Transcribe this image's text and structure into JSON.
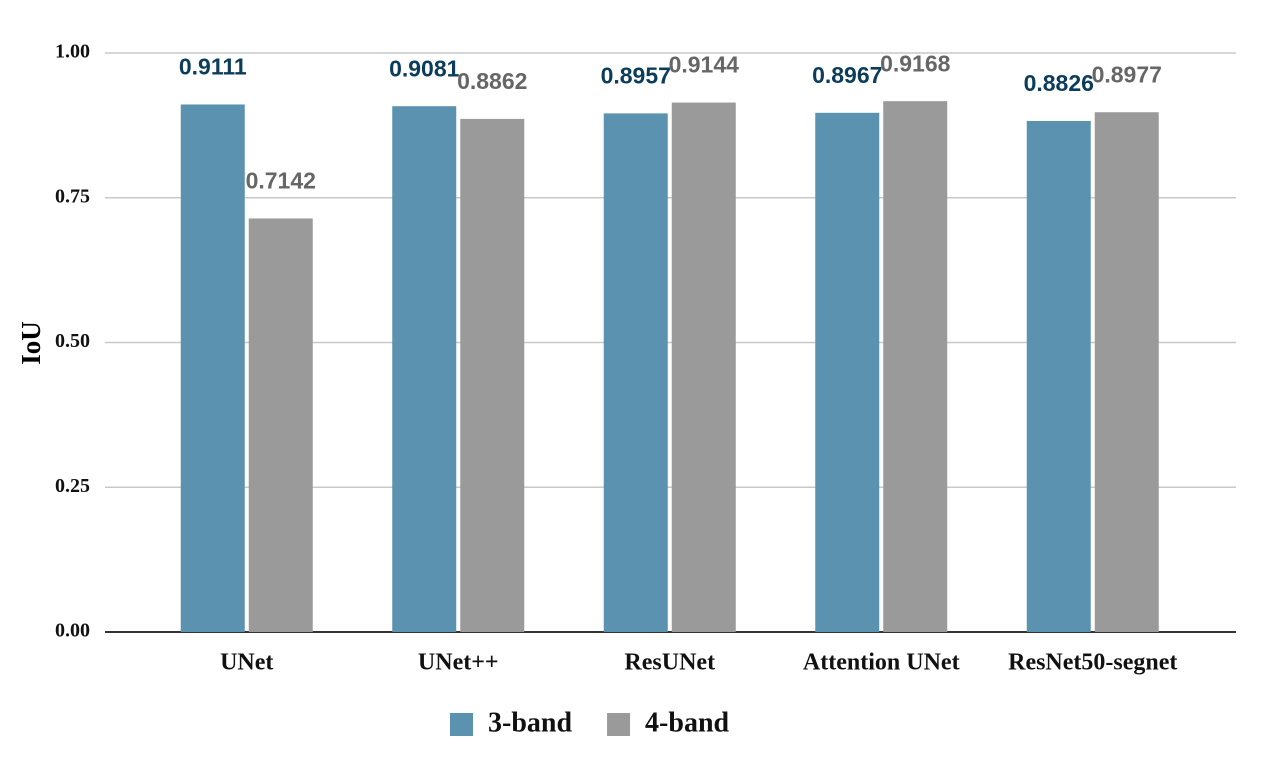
{
  "chart_data": {
    "type": "bar",
    "y_label": "IoU",
    "categories": [
      "UNet",
      "UNet++",
      "ResUNet",
      "Attention UNet",
      "ResNet50-segnet"
    ],
    "series": [
      {
        "name": "3-band",
        "color": "#5a92b0",
        "label_color": "#0b3d5b",
        "values": [
          0.9111,
          0.9081,
          0.8957,
          0.8967,
          0.8826
        ]
      },
      {
        "name": "4-band",
        "color": "#9a9a9a",
        "label_color": "#666666",
        "values": [
          0.7142,
          0.8862,
          0.9144,
          0.9168,
          0.8977
        ]
      }
    ],
    "ylim": [
      0,
      1
    ],
    "yticks": [
      {
        "value": 0,
        "label": "0.00"
      },
      {
        "value": 0.25,
        "label": "0.25"
      },
      {
        "value": 0.5,
        "label": "0.50"
      },
      {
        "value": 0.75,
        "label": "0.75"
      },
      {
        "value": 1,
        "label": "1.00"
      }
    ],
    "grid": true,
    "legend": "bottom"
  }
}
